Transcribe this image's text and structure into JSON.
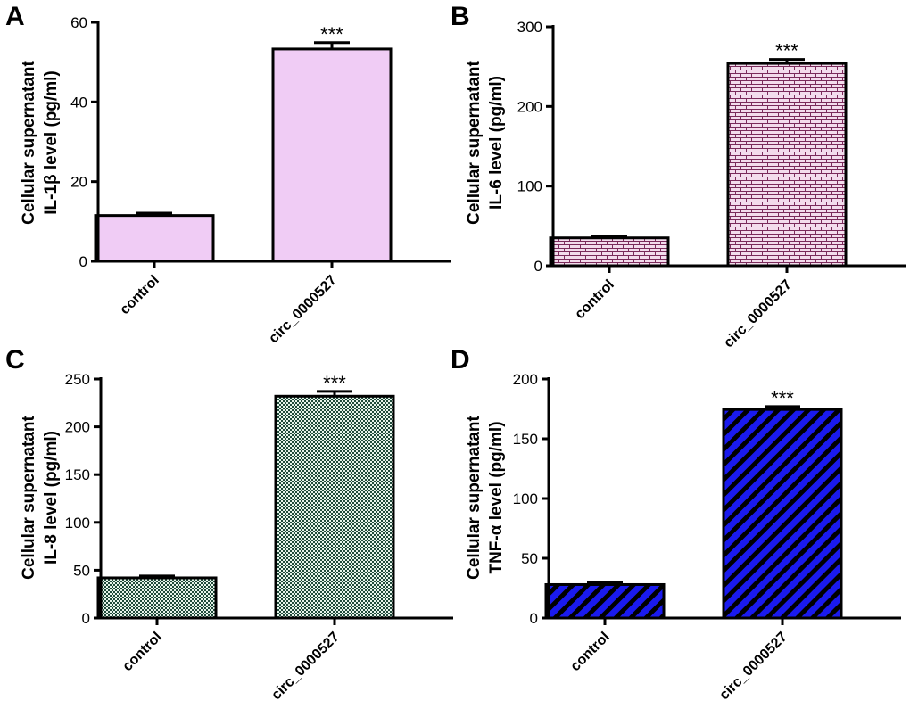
{
  "figure": {
    "panels": [
      {
        "letter": "A",
        "ylabel_line1": "Cellular supernatant",
        "ylabel_line2": "IL-1β level (pg/ml)",
        "fill": "#f0ccf5",
        "pattern": "solid",
        "significance": "***"
      },
      {
        "letter": "B",
        "ylabel_line1": "Cellular supernatant",
        "ylabel_line2": "IL-6 level (pg/ml)",
        "fill": "#f3dcec",
        "pattern": "brick",
        "significance": "***"
      },
      {
        "letter": "C",
        "ylabel_line1": "Cellular supernatant",
        "ylabel_line2": "IL-8 level (pg/ml)",
        "fill": "#dcefe4",
        "pattern": "checker",
        "significance": "***"
      },
      {
        "letter": "D",
        "ylabel_line1": "Cellular supernatant",
        "ylabel_line2": "TNF-α level (pg/ml)",
        "fill": "#1a1aee",
        "pattern": "diagonal",
        "significance": "***"
      }
    ]
  },
  "chart_data": [
    {
      "type": "bar",
      "title": "A",
      "categories": [
        "control",
        "circ_0000527"
      ],
      "values": [
        11.5,
        53.3
      ],
      "errors": [
        0.6,
        1.6
      ],
      "ylabel": "Cellular supernatant IL-1β level (pg/ml)",
      "ylim": [
        0,
        60
      ],
      "yticks": [
        0,
        20,
        40,
        60
      ]
    },
    {
      "type": "bar",
      "title": "B",
      "categories": [
        "control",
        "circ_0000527"
      ],
      "values": [
        35,
        254
      ],
      "errors": [
        1.5,
        5
      ],
      "ylabel": "Cellular supernatant IL-6 level (pg/ml)",
      "ylim": [
        0,
        300
      ],
      "yticks": [
        0,
        100,
        200,
        300
      ]
    },
    {
      "type": "bar",
      "title": "C",
      "categories": [
        "control",
        "circ_0000527"
      ],
      "values": [
        42,
        232
      ],
      "errors": [
        2,
        5
      ],
      "ylabel": "Cellular supernatant IL-8 level (pg/ml)",
      "ylim": [
        0,
        250
      ],
      "yticks": [
        0,
        50,
        100,
        150,
        200,
        250
      ]
    },
    {
      "type": "bar",
      "title": "D",
      "categories": [
        "control",
        "circ_0000527"
      ],
      "values": [
        28,
        174.5
      ],
      "errors": [
        1.5,
        2.5
      ],
      "ylabel": "Cellular supernatant TNF-α level (pg/ml)",
      "ylim": [
        0,
        200
      ],
      "yticks": [
        0,
        50,
        100,
        150,
        200
      ]
    }
  ]
}
